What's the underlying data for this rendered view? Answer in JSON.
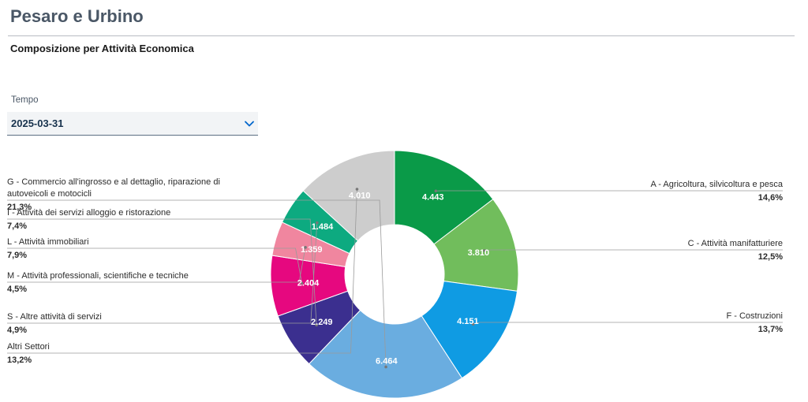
{
  "header": {
    "title": "Pesaro e Urbino",
    "subtitle": "Composizione per Attività Economica"
  },
  "filter": {
    "label": "Tempo",
    "selected": "2025-03-31",
    "icon": "chevron-down-icon"
  },
  "chart_data": {
    "type": "pie",
    "donut": true,
    "value_unit": "imprese",
    "segments": [
      {
        "name": "A - Agricoltura, silvicoltura e pesca",
        "value": 4443,
        "value_label": "4.443",
        "percent_label": "14,6%",
        "color": "#0a9a48",
        "side": "right"
      },
      {
        "name": "C - Attività manifatturiere",
        "value": 3810,
        "value_label": "3.810",
        "percent_label": "12,5%",
        "color": "#71bd5c",
        "side": "right"
      },
      {
        "name": "F - Costruzioni",
        "value": 4151,
        "value_label": "4.151",
        "percent_label": "13,7%",
        "color": "#0f9be3",
        "side": "right"
      },
      {
        "name": [
          "G - Commercio all'ingrosso e al dettaglio, riparazione di",
          "autoveicoli e motocicli"
        ],
        "value": 6464,
        "value_label": "6.464",
        "percent_label": "21,3%",
        "color": "#6aade0",
        "side": "left"
      },
      {
        "name": "I - Attività dei servizi alloggio e ristorazione",
        "value": 2249,
        "value_label": "2.249",
        "percent_label": "7,4%",
        "color": "#3b2f8f",
        "side": "left"
      },
      {
        "name": "L - Attività immobiliari",
        "value": 2404,
        "value_label": "2.404",
        "percent_label": "7,9%",
        "color": "#e6087f",
        "side": "left"
      },
      {
        "name": "M - Attività professionali, scientifiche e tecniche",
        "value": 1359,
        "value_label": "1.359",
        "percent_label": "4,5%",
        "color": "#f0869f",
        "side": "left"
      },
      {
        "name": "S - Altre attività di servizi",
        "value": 1484,
        "value_label": "1.484",
        "percent_label": "4,9%",
        "color": "#0daa80",
        "side": "left"
      },
      {
        "name": "Altri Settori",
        "value": 4010,
        "value_label": "4.010",
        "percent_label": "13,2%",
        "color": "#cdcdcd",
        "side": "left"
      }
    ]
  }
}
